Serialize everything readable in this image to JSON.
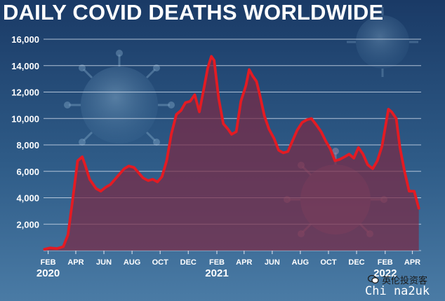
{
  "title": "DAILY COVID DEATHS WORLDWIDE",
  "watermark": {
    "name": "英伦投资客",
    "site": "Chi na2uk"
  },
  "colors": {
    "line": "#e31b23",
    "fill": "#7a2a45",
    "background_top": "#1c3d6b",
    "background_bottom": "#3f6f9a",
    "grid": "#c9d6e6"
  },
  "chart_data": {
    "type": "area",
    "title": "DAILY COVID DEATHS WORLDWIDE",
    "xlabel": "",
    "ylabel": "",
    "ylim": [
      0,
      16000
    ],
    "yticks": [
      2000,
      4000,
      6000,
      8000,
      10000,
      12000,
      14000,
      16000
    ],
    "ytick_labels": [
      "2,000",
      "4,000",
      "6,000",
      "8,000",
      "10,000",
      "12,000",
      "14,000",
      "16,000"
    ],
    "xlim": [
      "2020-01-22",
      "2022-04-20"
    ],
    "xticks": [
      {
        "date": "2020-02-01",
        "label": "FEB"
      },
      {
        "date": "2020-04-01",
        "label": "APR"
      },
      {
        "date": "2020-06-01",
        "label": "JUN"
      },
      {
        "date": "2020-08-01",
        "label": "AUG"
      },
      {
        "date": "2020-10-01",
        "label": "OCT"
      },
      {
        "date": "2020-12-01",
        "label": "DEC"
      },
      {
        "date": "2021-02-01",
        "label": "FEB"
      },
      {
        "date": "2021-04-01",
        "label": "APR"
      },
      {
        "date": "2021-06-01",
        "label": "JUN"
      },
      {
        "date": "2021-08-01",
        "label": "AUG"
      },
      {
        "date": "2021-10-01",
        "label": "OCT"
      },
      {
        "date": "2021-12-01",
        "label": "DEC"
      },
      {
        "date": "2022-02-01",
        "label": "FEB"
      },
      {
        "date": "2022-04-01",
        "label": "APR"
      }
    ],
    "year_labels": [
      {
        "date": "2020-02-01",
        "label": "2020"
      },
      {
        "date": "2021-02-01",
        "label": "2021"
      },
      {
        "date": "2022-02-01",
        "label": "2022"
      }
    ],
    "grid": true,
    "series": [
      {
        "x": [
          "2020-01-24",
          "2020-02-05",
          "2020-02-20",
          "2020-03-05",
          "2020-03-15",
          "2020-03-25",
          "2020-04-05",
          "2020-04-15",
          "2020-04-22",
          "2020-05-01",
          "2020-05-15",
          "2020-05-25",
          "2020-06-05",
          "2020-06-15",
          "2020-06-25",
          "2020-07-05",
          "2020-07-15",
          "2020-07-25",
          "2020-08-05",
          "2020-08-15",
          "2020-08-25",
          "2020-09-05",
          "2020-09-15",
          "2020-09-25",
          "2020-10-05",
          "2020-10-15",
          "2020-10-25",
          "2020-11-05",
          "2020-11-15",
          "2020-11-25",
          "2020-12-05",
          "2020-12-15",
          "2020-12-25",
          "2021-01-05",
          "2021-01-12",
          "2021-01-20",
          "2021-01-26",
          "2021-02-05",
          "2021-02-15",
          "2021-02-25",
          "2021-03-05",
          "2021-03-15",
          "2021-03-25",
          "2021-04-05",
          "2021-04-12",
          "2021-04-20",
          "2021-04-28",
          "2021-05-05",
          "2021-05-15",
          "2021-05-25",
          "2021-06-05",
          "2021-06-15",
          "2021-06-25",
          "2021-07-05",
          "2021-07-15",
          "2021-07-25",
          "2021-08-05",
          "2021-08-15",
          "2021-08-25",
          "2021-09-05",
          "2021-09-15",
          "2021-09-25",
          "2021-10-05",
          "2021-10-15",
          "2021-10-25",
          "2021-11-05",
          "2021-11-15",
          "2021-11-25",
          "2021-12-05",
          "2021-12-15",
          "2021-12-25",
          "2022-01-05",
          "2022-01-15",
          "2022-01-25",
          "2022-02-01",
          "2022-02-08",
          "2022-02-15",
          "2022-02-25",
          "2022-03-05",
          "2022-03-15",
          "2022-03-25",
          "2022-04-05",
          "2022-04-15"
        ],
        "values": [
          100,
          200,
          150,
          300,
          1200,
          3800,
          6800,
          7100,
          6400,
          5400,
          4700,
          4500,
          4800,
          5000,
          5400,
          5800,
          6200,
          6400,
          6300,
          5900,
          5500,
          5300,
          5400,
          5200,
          5600,
          6800,
          8800,
          10300,
          10600,
          11200,
          11300,
          11800,
          10500,
          12500,
          13800,
          14700,
          14400,
          11500,
          9600,
          9200,
          8800,
          9000,
          11300,
          12500,
          13700,
          13200,
          12800,
          11800,
          10200,
          9200,
          8500,
          7600,
          7400,
          7500,
          8300,
          9100,
          9700,
          9900,
          10000,
          9500,
          9000,
          8300,
          7700,
          6800,
          6900,
          7100,
          7300,
          7000,
          7800,
          7300,
          6500,
          6200,
          6800,
          7900,
          9300,
          10700,
          10500,
          10000,
          7800,
          6000,
          4500,
          4500,
          3200
        ]
      }
    ]
  }
}
